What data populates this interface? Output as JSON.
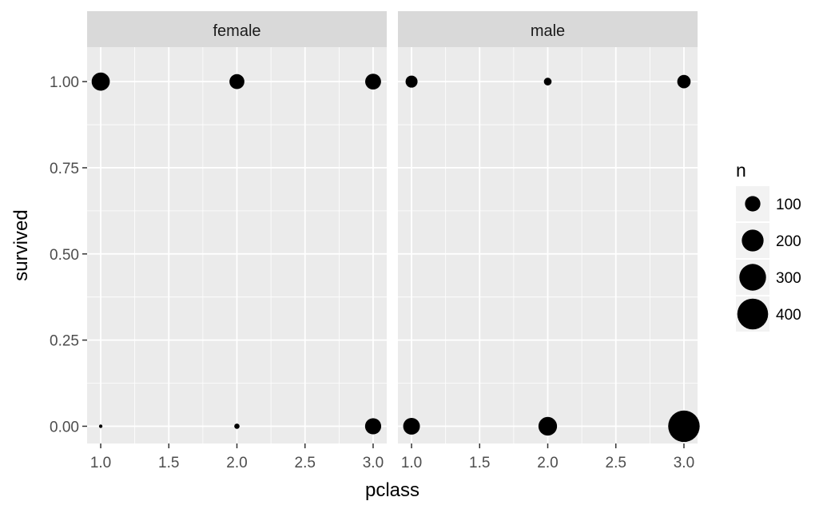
{
  "chart_data": {
    "type": "scatter",
    "xlabel": "pclass",
    "ylabel": "survived",
    "xlim": [
      0.9,
      3.1
    ],
    "ylim": [
      -0.05,
      1.1
    ],
    "x_ticks": [
      1.0,
      1.5,
      2.0,
      2.5,
      3.0
    ],
    "x_tick_labels": [
      "1.0",
      "1.5",
      "2.0",
      "2.5",
      "3.0"
    ],
    "y_ticks": [
      0.0,
      0.25,
      0.5,
      0.75,
      1.0
    ],
    "y_tick_labels": [
      "0.00",
      "0.25",
      "0.50",
      "0.75",
      "1.00"
    ],
    "grid": true,
    "facet_variable": "sex",
    "panels": [
      {
        "label": "female",
        "points": [
          {
            "pclass": 1,
            "survived": 1,
            "n": 139
          },
          {
            "pclass": 1,
            "survived": 0,
            "n": 5
          },
          {
            "pclass": 2,
            "survived": 1,
            "n": 94
          },
          {
            "pclass": 2,
            "survived": 0,
            "n": 12
          },
          {
            "pclass": 3,
            "survived": 1,
            "n": 106
          },
          {
            "pclass": 3,
            "survived": 0,
            "n": 110
          }
        ]
      },
      {
        "label": "male",
        "points": [
          {
            "pclass": 1,
            "survived": 1,
            "n": 61
          },
          {
            "pclass": 1,
            "survived": 0,
            "n": 118
          },
          {
            "pclass": 2,
            "survived": 1,
            "n": 25
          },
          {
            "pclass": 2,
            "survived": 0,
            "n": 146
          },
          {
            "pclass": 3,
            "survived": 1,
            "n": 75
          },
          {
            "pclass": 3,
            "survived": 0,
            "n": 418
          }
        ]
      }
    ],
    "legend": {
      "title": "n",
      "placement": "right",
      "breaks": [
        100,
        200,
        300,
        400
      ],
      "labels": [
        "100",
        "200",
        "300",
        "400"
      ]
    },
    "colors": {
      "panel_bg": "#ebebeb",
      "strip_bg": "#d9d9d9",
      "grid": "#ffffff",
      "point": "#000000"
    }
  }
}
